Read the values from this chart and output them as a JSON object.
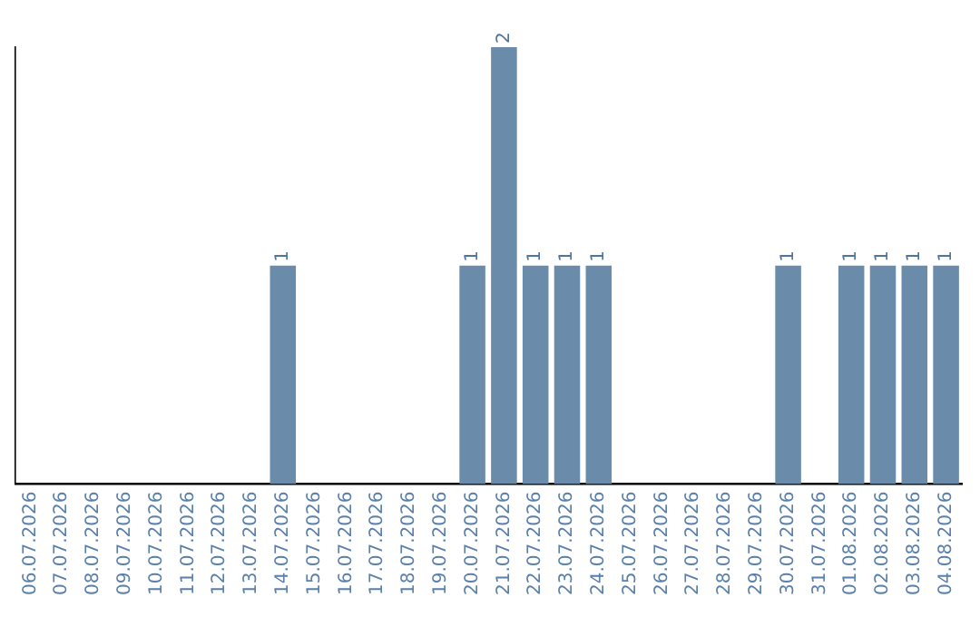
{
  "chart_data": {
    "type": "bar",
    "categories": [
      "06.07.2026",
      "07.07.2026",
      "08.07.2026",
      "09.07.2026",
      "10.07.2026",
      "11.07.2026",
      "12.07.2026",
      "13.07.2026",
      "14.07.2026",
      "15.07.2026",
      "16.07.2026",
      "17.07.2026",
      "18.07.2026",
      "19.07.2026",
      "20.07.2026",
      "21.07.2026",
      "22.07.2026",
      "23.07.2026",
      "24.07.2026",
      "25.07.2026",
      "26.07.2026",
      "27.07.2026",
      "28.07.2026",
      "29.07.2026",
      "30.07.2026",
      "31.07.2026",
      "01.08.2026",
      "02.08.2026",
      "03.08.2026",
      "04.08.2026"
    ],
    "values": [
      0,
      0,
      0,
      0,
      0,
      0,
      0,
      0,
      1,
      0,
      0,
      0,
      0,
      0,
      1,
      2,
      1,
      1,
      1,
      0,
      0,
      0,
      0,
      0,
      1,
      0,
      1,
      1,
      1,
      1
    ],
    "value_labels": [
      null,
      null,
      null,
      null,
      null,
      null,
      null,
      null,
      "1",
      null,
      null,
      null,
      null,
      null,
      "1",
      "2",
      "1",
      "1",
      "1",
      null,
      null,
      null,
      null,
      null,
      "1",
      null,
      "1",
      "1",
      "1",
      "1"
    ],
    "color": "#6b8bab",
    "grid": false,
    "legend": false,
    "tick_labels": "x"
  }
}
